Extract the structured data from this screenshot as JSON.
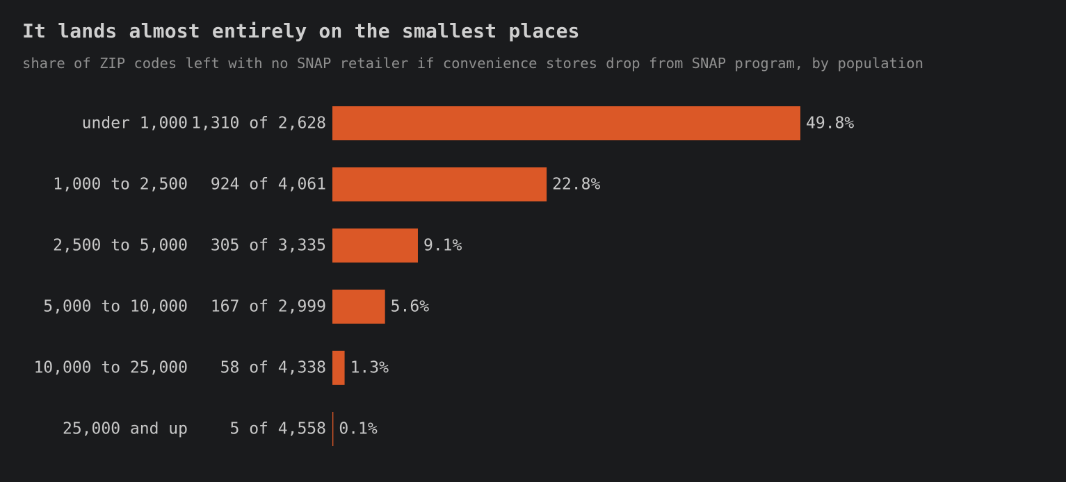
{
  "title": "It lands almost entirely on the smallest places",
  "subtitle": "share of ZIP codes left with no SNAP retailer if convenience stores drop from SNAP program, by population",
  "colors": {
    "background": "#1a1b1d",
    "bar": "#db5827",
    "text": "#c8c8c8",
    "subtitle": "#8f8f8f"
  },
  "chart_data": {
    "type": "bar",
    "orientation": "horizontal",
    "title": "It lands almost entirely on the smallest places",
    "subtitle": "share of ZIP codes left with no SNAP retailer if convenience stores drop from SNAP program, by population",
    "xlim": [
      0,
      49.8
    ],
    "grid": false,
    "categories": [
      "under 1,000",
      "1,000 to 2,500",
      "2,500 to 5,000",
      "5,000 to 10,000",
      "10,000 to 25,000",
      "25,000 and up"
    ],
    "counts": [
      "1,310 of 2,628",
      "924 of 4,061",
      "305 of 3,335",
      "167 of 2,999",
      "58 of 4,338",
      "5 of 4,558"
    ],
    "values": [
      49.8,
      22.8,
      9.1,
      5.6,
      1.3,
      0.1
    ],
    "value_labels": [
      "49.8%",
      "22.8%",
      "9.1%",
      "5.6%",
      "1.3%",
      "0.1%"
    ]
  }
}
